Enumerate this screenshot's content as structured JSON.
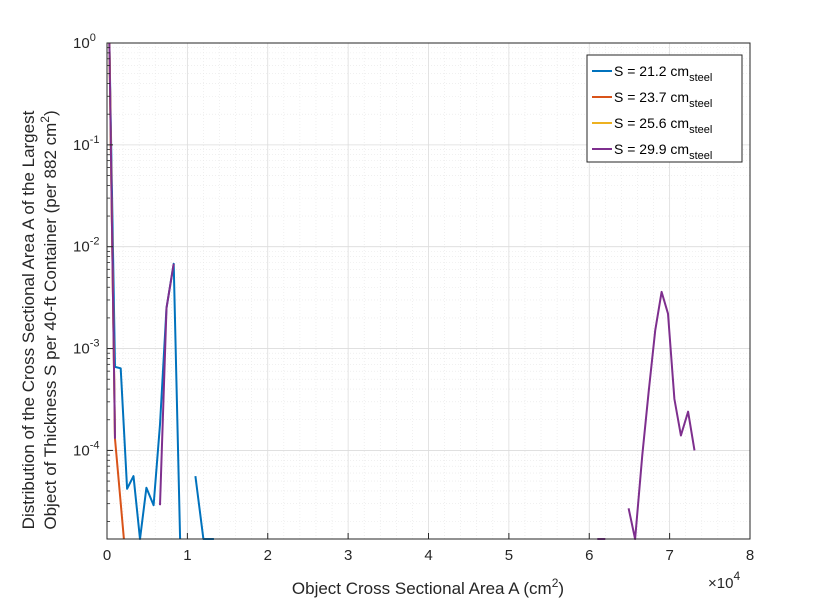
{
  "chart_data": {
    "type": "line",
    "xlabel": "Object Cross Sectional Area A (cm",
    "xlabel_sup": "2",
    "xlabel_tail": ")",
    "ylabel_line1": "Distribution of the Cross Sectional Area A of the Largest",
    "ylabel_line2": "Object of Thickness S per 40-ft Container (per 882 cm",
    "ylabel_sup": "2",
    "ylabel_tail": ")",
    "x_multiplier": "×10",
    "x_multiplier_exp": "4",
    "xlim": [
      0,
      80000
    ],
    "ylim_log": [
      1.35e-05,
      1
    ],
    "yscale": "log",
    "grid": true,
    "minor_grid": true,
    "legend_position": "top-right",
    "x_ticks": [
      {
        "v": 0,
        "label": "0"
      },
      {
        "v": 10000,
        "label": "1"
      },
      {
        "v": 20000,
        "label": "2"
      },
      {
        "v": 30000,
        "label": "3"
      },
      {
        "v": 40000,
        "label": "4"
      },
      {
        "v": 50000,
        "label": "5"
      },
      {
        "v": 60000,
        "label": "6"
      },
      {
        "v": 70000,
        "label": "7"
      },
      {
        "v": 80000,
        "label": "8"
      }
    ],
    "y_ticks": [
      {
        "v": 1,
        "base": "10",
        "exp": "0"
      },
      {
        "v": 0.1,
        "base": "10",
        "exp": "-1"
      },
      {
        "v": 0.01,
        "base": "10",
        "exp": "-2"
      },
      {
        "v": 0.001,
        "base": "10",
        "exp": "-3"
      },
      {
        "v": 0.0001,
        "base": "10",
        "exp": "-4"
      }
    ],
    "series": [
      {
        "name": "S = 21.2 cm",
        "name_sub": "steel",
        "color": "#0072BD",
        "segments": [
          [
            [
              300,
              1
            ],
            [
              1000,
              0.00066
            ],
            [
              1700,
              0.00064
            ],
            [
              2500,
              4.2e-05
            ],
            [
              3300,
              5.6e-05
            ],
            [
              4100,
              1.35e-05
            ],
            [
              4900,
              4.3e-05
            ],
            [
              5800,
              2.9e-05
            ],
            [
              6600,
              0.00018
            ],
            [
              7400,
              0.0025
            ],
            [
              8300,
              0.0068
            ],
            [
              9100,
              1.35e-05
            ]
          ],
          [
            [
              11000,
              5.6e-05
            ],
            [
              12000,
              1.35e-05
            ],
            [
              13300,
              1.35e-05
            ]
          ]
        ]
      },
      {
        "name": "S = 23.7 cm",
        "name_sub": "steel",
        "color": "#D95319",
        "segments": [
          [
            [
              300,
              1
            ],
            [
              1000,
              0.00013
            ],
            [
              2100,
              1.35e-05
            ]
          ]
        ]
      },
      {
        "name": "S = 25.6 cm",
        "name_sub": "steel",
        "color": "#EDB120",
        "segments": [
          [
            [
              300,
              1
            ],
            [
              1000,
              0.00013
            ]
          ]
        ]
      },
      {
        "name": "S = 29.9 cm",
        "name_sub": "steel",
        "color": "#7E2F8E",
        "segments": [
          [
            [
              300,
              1
            ],
            [
              1000,
              0.00013
            ]
          ],
          [
            [
              6600,
              2.9e-05
            ],
            [
              7400,
              0.0025
            ],
            [
              8300,
              0.0068
            ]
          ],
          [
            [
              61000,
              1.35e-05
            ],
            [
              62000,
              1.35e-05
            ]
          ],
          [
            [
              64900,
              2.7e-05
            ],
            [
              65700,
              1.35e-05
            ],
            [
              66600,
              9e-05
            ],
            [
              67400,
              0.00038
            ],
            [
              68200,
              0.0015
            ],
            [
              69000,
              0.0036
            ],
            [
              69800,
              0.0022
            ],
            [
              70600,
              0.00032
            ],
            [
              71400,
              0.00014
            ],
            [
              72300,
              0.00024
            ],
            [
              73100,
              0.0001
            ]
          ]
        ]
      }
    ]
  }
}
